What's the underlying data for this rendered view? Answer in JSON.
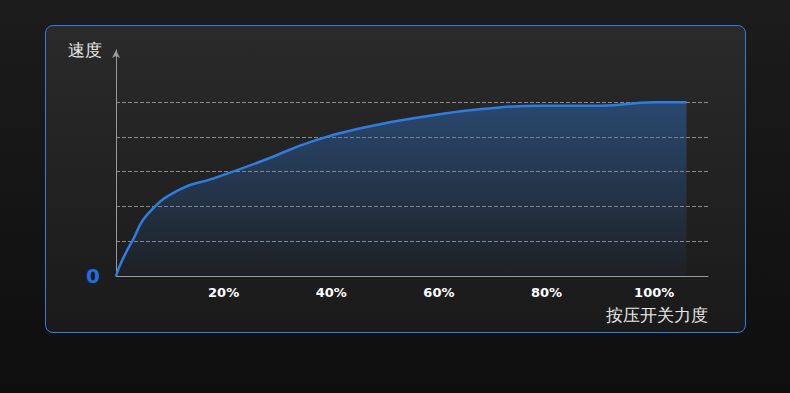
{
  "chart_data": {
    "type": "line",
    "x_label": "按压开关力度",
    "y_label": "速度",
    "x": [
      0,
      1,
      3,
      6,
      12,
      18,
      27,
      37,
      47,
      58,
      68,
      79,
      90,
      100,
      106
    ],
    "values": [
      0,
      0.4,
      1.0,
      1.8,
      2.5,
      2.8,
      3.3,
      3.9,
      4.3,
      4.6,
      4.8,
      4.9,
      4.9,
      5.0,
      5.0
    ],
    "color": "#2f7de1",
    "xlim": [
      0,
      110
    ],
    "xticks": [
      {
        "value": 20,
        "label": "20%"
      },
      {
        "value": 40,
        "label": "40%"
      },
      {
        "value": 60,
        "label": "60%"
      },
      {
        "value": 80,
        "label": "80%"
      },
      {
        "value": 100,
        "label": "100%"
      }
    ],
    "ylim": [
      0,
      6.5
    ],
    "yticks": [
      0,
      {
        "value": 1,
        "label": null
      },
      {
        "value": 2,
        "label": null
      },
      {
        "value": 3,
        "label": null
      },
      {
        "value": 4,
        "label": null
      },
      {
        "value": 5,
        "label": null
      }
    ],
    "grid": true
  }
}
